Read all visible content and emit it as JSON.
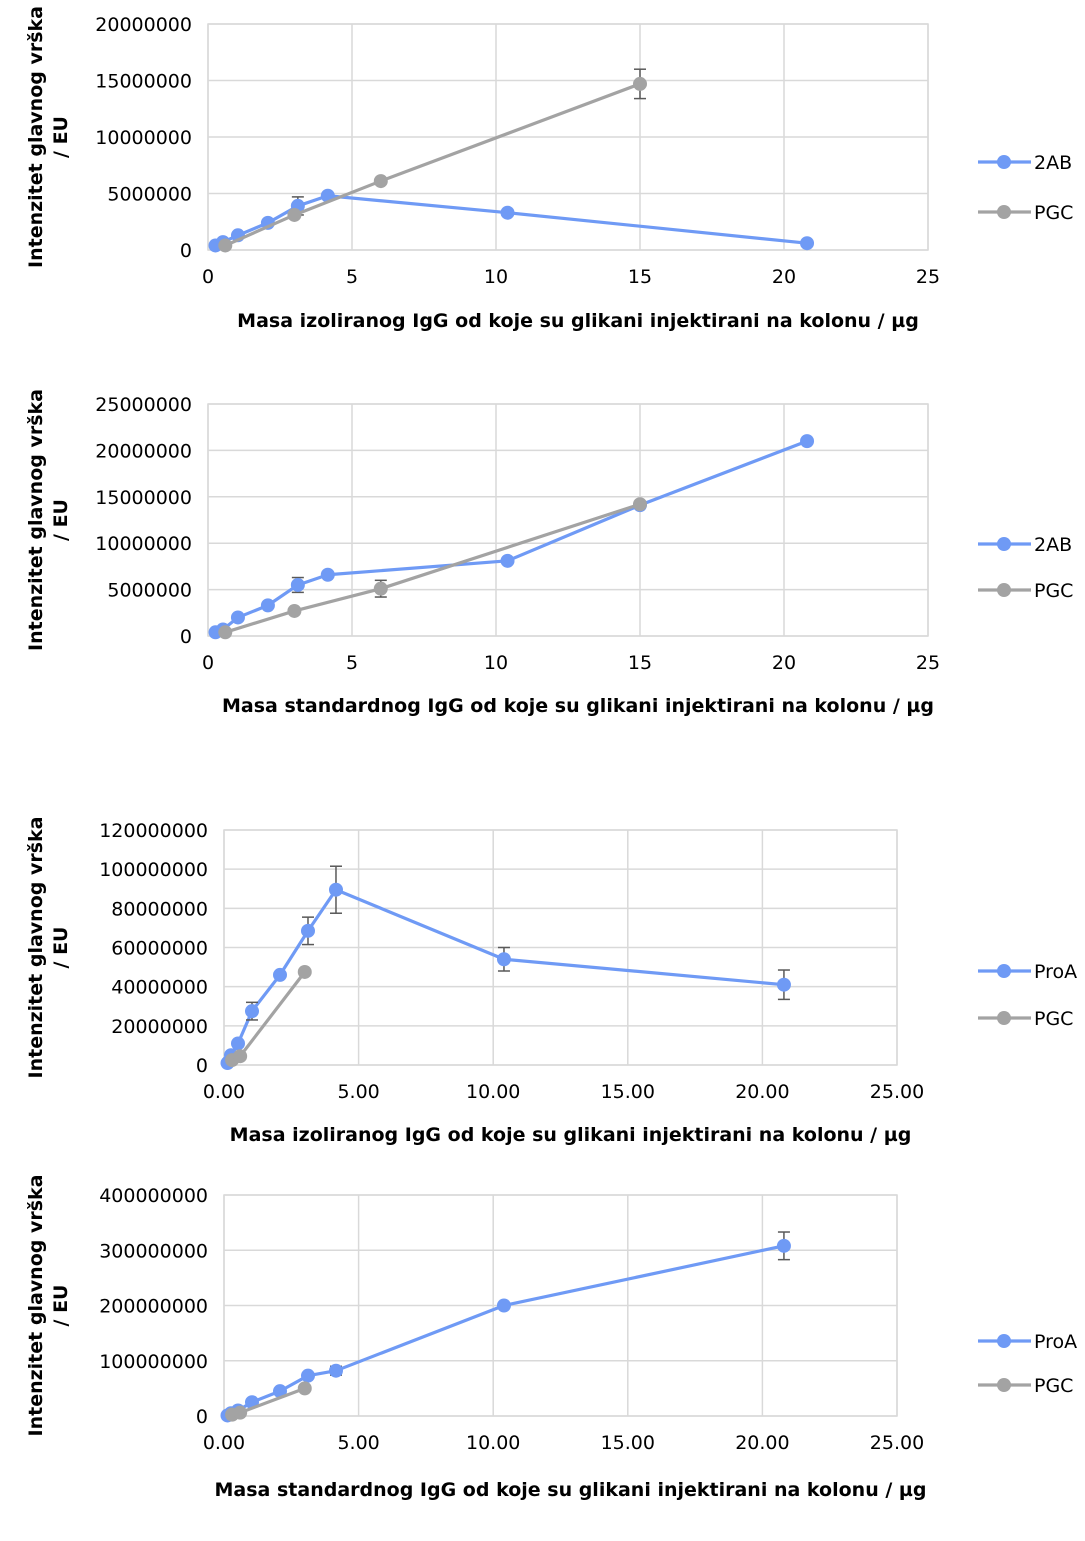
{
  "colors": {
    "blue": "#6f9af5",
    "gray": "#a3a3a3",
    "grid": "#d9d9d9",
    "errbar": "#595959"
  },
  "chart_data": [
    {
      "type": "scatter",
      "xlabel": "Masa izoliranog IgG od koje su glikani injektirani na kolonu / µg",
      "ylabel_lines": [
        "Intenzitet glavnog vrška",
        "/ EU"
      ],
      "xlim": [
        0,
        25
      ],
      "ylim": [
        0,
        20000000
      ],
      "xticks": [
        "0",
        "5",
        "10",
        "15",
        "20",
        "25"
      ],
      "yticks": [
        "0",
        "5000000",
        "10000000",
        "15000000",
        "20000000"
      ],
      "grid": true,
      "legend_position": "right",
      "series": [
        {
          "name": "2AB",
          "color": "blue",
          "x": [
            0.26,
            0.52,
            1.04,
            2.08,
            3.12,
            4.16,
            10.4,
            20.8
          ],
          "y": [
            400000,
            700000,
            1300000,
            2400000,
            3900000,
            4800000,
            3300000,
            600000
          ],
          "err": [
            0,
            0,
            0,
            0,
            800000,
            0,
            0,
            0
          ]
        },
        {
          "name": "PGC",
          "color": "gray",
          "x": [
            0.6,
            3.0,
            6.0,
            15.0
          ],
          "y": [
            400000,
            3100000,
            6100000,
            14700000
          ],
          "err": [
            0,
            0,
            0,
            1300000
          ]
        }
      ]
    },
    {
      "type": "scatter",
      "xlabel": "Masa standardnog IgG od koje su glikani injektirani na kolonu / µg",
      "ylabel_lines": [
        "Intenzitet glavnog vrška",
        "/ EU"
      ],
      "xlim": [
        0,
        25
      ],
      "ylim": [
        0,
        25000000
      ],
      "xticks": [
        "0",
        "5",
        "10",
        "15",
        "20",
        "25"
      ],
      "yticks": [
        "0",
        "5000000",
        "10000000",
        "15000000",
        "20000000",
        "25000000"
      ],
      "grid": true,
      "legend_position": "right",
      "series": [
        {
          "name": "2AB",
          "color": "blue",
          "x": [
            0.26,
            0.52,
            1.04,
            2.08,
            3.12,
            4.16,
            10.4,
            15.0,
            20.8
          ],
          "y": [
            400000,
            700000,
            2000000,
            3300000,
            5500000,
            6600000,
            8100000,
            14100000,
            21000000
          ],
          "err": [
            0,
            0,
            0,
            0,
            800000,
            0,
            0,
            0,
            0
          ]
        },
        {
          "name": "PGC",
          "color": "gray",
          "x": [
            0.6,
            3.0,
            6.0,
            15.0
          ],
          "y": [
            400000,
            2700000,
            5100000,
            14200000
          ],
          "err": [
            0,
            0,
            900000,
            0
          ]
        }
      ]
    },
    {
      "type": "scatter",
      "xlabel": "Masa izoliranog IgG od koje su glikani injektirani na kolonu / µg",
      "ylabel_lines": [
        "Intenzitet glavnog vrška",
        "/ EU"
      ],
      "xlim": [
        0,
        25
      ],
      "ylim": [
        0,
        120000000
      ],
      "xticks": [
        "0.00",
        "5.00",
        "10.00",
        "15.00",
        "20.00",
        "25.00"
      ],
      "yticks": [
        "0",
        "20000000",
        "40000000",
        "60000000",
        "80000000",
        "100000000",
        "120000000"
      ],
      "grid": true,
      "legend_position": "right",
      "series": [
        {
          "name": "ProA",
          "color": "blue",
          "x": [
            0.13,
            0.26,
            0.52,
            1.04,
            2.08,
            3.12,
            4.16,
            10.4,
            20.8
          ],
          "y": [
            1000000,
            5000000,
            11000000,
            27500000,
            46000000,
            68500000,
            89500000,
            54000000,
            41000000
          ],
          "err": [
            0,
            0,
            0,
            4500000,
            0,
            7000000,
            12000000,
            6000000,
            7500000
          ]
        },
        {
          "name": "PGC",
          "color": "gray",
          "x": [
            0.3,
            0.6,
            3.0
          ],
          "y": [
            2500000,
            4500000,
            47500000
          ],
          "err": [
            0,
            0,
            0
          ]
        }
      ]
    },
    {
      "type": "scatter",
      "xlabel": "Masa standardnog IgG od koje su glikani injektirani na kolonu / µg",
      "ylabel_lines": [
        "Intenzitet glavnog vrška",
        "/ EU"
      ],
      "xlim": [
        0,
        25
      ],
      "ylim": [
        0,
        400000000
      ],
      "xticks": [
        "0.00",
        "5.00",
        "10.00",
        "15.00",
        "20.00",
        "25.00"
      ],
      "yticks": [
        "0",
        "100000000",
        "200000000",
        "300000000",
        "400000000"
      ],
      "grid": true,
      "legend_position": "right",
      "series": [
        {
          "name": "ProA",
          "color": "blue",
          "x": [
            0.13,
            0.26,
            0.52,
            1.04,
            2.08,
            3.12,
            4.16,
            10.4,
            20.8
          ],
          "y": [
            1000000,
            5000000,
            10000000,
            25000000,
            45000000,
            73000000,
            82000000,
            200000000,
            308000000
          ],
          "err": [
            0,
            0,
            0,
            0,
            0,
            0,
            8000000,
            0,
            25000000
          ]
        },
        {
          "name": "PGC",
          "color": "gray",
          "x": [
            0.3,
            0.6,
            3.0
          ],
          "y": [
            2500000,
            6000000,
            50000000
          ],
          "err": [
            0,
            0,
            0
          ]
        }
      ]
    }
  ]
}
